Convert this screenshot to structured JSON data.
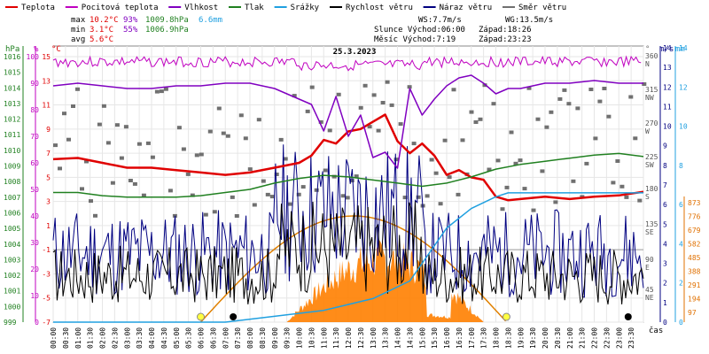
{
  "chart_data": {
    "type": "line",
    "title": "25.3.2023",
    "legend": [
      {
        "name": "Teplota",
        "color": "#e00000"
      },
      {
        "name": "Pocitová teplota",
        "color": "#c000c0"
      },
      {
        "name": "Vlhkost",
        "color": "#8000c0"
      },
      {
        "name": "Tlak",
        "color": "#208020"
      },
      {
        "name": "Srážky",
        "color": "#20a0e0"
      },
      {
        "name": "Rychlost větru",
        "color": "#000000"
      },
      {
        "name": "Náraz větru",
        "color": "#000080"
      },
      {
        "name": "Směr větru",
        "color": "#707070"
      }
    ],
    "stats": {
      "max_label": "max",
      "max_temp": "10.2°C",
      "max_hum": "93%",
      "max_press": "1009.8hPa",
      "max_rain": "6.6mm",
      "min_label": "min",
      "min_temp": "3.1°C",
      "min_hum": "55%",
      "min_press": "1006.9hPa",
      "avg_label": "avg",
      "avg_temp": "5.6°C",
      "ws": "WS:7.7m/s",
      "wg": "WG:13.5m/s",
      "sun": "Slunce Východ:06:00",
      "sun_set": "Západ:18:26",
      "moon": "Měsíc Východ:7:19",
      "moon_set": "Západ:23:23"
    },
    "axes": {
      "hpa_label": "hPa",
      "pct_label": "%",
      "c_label": "°C",
      "deg_label": "°",
      "ms_label": "m/s",
      "mm_label": "mm",
      "time_label": "čas",
      "hpa_ticks": [
        1016,
        1015,
        1014,
        1013,
        1012,
        1011,
        1010,
        1009,
        1008,
        1007,
        1006,
        1005,
        1004,
        1003,
        1002,
        1001,
        1000,
        999
      ],
      "pct_ticks": [
        100,
        90,
        80,
        70,
        60,
        50,
        40,
        30,
        20,
        10,
        0
      ],
      "c_ticks": [
        15,
        13,
        11,
        9,
        7,
        5,
        3,
        1,
        -1,
        -3,
        -5,
        -7
      ],
      "dir_ticks": [
        "360 N",
        "315 NW",
        "270 W",
        "225 SW",
        "180 S",
        "135 SE",
        "90 E",
        "45 NE"
      ],
      "ms_ticks": [
        14,
        13,
        12,
        11,
        10,
        9,
        8,
        7,
        6,
        5,
        4,
        3,
        2,
        1,
        0
      ],
      "mm_ticks": [
        14,
        12,
        10,
        8,
        6,
        4,
        2,
        0
      ],
      "solar_ticks": [
        873,
        776,
        679,
        582,
        485,
        388,
        291,
        194,
        97
      ],
      "time_ticks": [
        "00:00",
        "00:30",
        "01:00",
        "01:30",
        "02:00",
        "02:30",
        "03:00",
        "03:30",
        "04:00",
        "04:30",
        "05:00",
        "05:30",
        "06:00",
        "06:30",
        "07:00",
        "07:30",
        "08:00",
        "08:30",
        "09:00",
        "09:30",
        "10:00",
        "10:30",
        "11:00",
        "11:30",
        "12:00",
        "12:30",
        "13:00",
        "13:30",
        "14:00",
        "14:30",
        "15:00",
        "15:30",
        "16:00",
        "16:30",
        "17:00",
        "17:30",
        "18:00",
        "18:30",
        "19:00",
        "19:30",
        "20:00",
        "20:30",
        "21:00",
        "21:30",
        "22:00",
        "22:30",
        "23:00",
        "23:30"
      ]
    },
    "series": [
      {
        "name": "Teplota",
        "unit": "°C",
        "x_hours": [
          0,
          1,
          2,
          3,
          4,
          5,
          6,
          7,
          8,
          9,
          10,
          10.5,
          11,
          11.5,
          12,
          12.5,
          13,
          13.5,
          14,
          14.5,
          15,
          15.5,
          16,
          16.5,
          17,
          17.5,
          18,
          18.5,
          19,
          20,
          21,
          22,
          23,
          24
        ],
        "values": [
          6.5,
          6.6,
          6.2,
          5.8,
          5.8,
          5.6,
          5.4,
          5.2,
          5.4,
          5.8,
          6.2,
          6.8,
          8.1,
          7.8,
          8.8,
          9.0,
          9.6,
          10.2,
          8.0,
          7.0,
          7.8,
          6.8,
          5.2,
          5.6,
          5.0,
          4.8,
          3.4,
          3.1,
          3.2,
          3.4,
          3.2,
          3.4,
          3.5,
          3.8
        ]
      },
      {
        "name": "Vlhkost",
        "unit": "%",
        "x_hours": [
          0,
          1,
          2,
          3,
          4,
          5,
          6,
          7,
          8,
          9,
          10,
          10.5,
          11,
          11.5,
          12,
          12.5,
          13,
          13.5,
          14,
          14.5,
          15,
          15.5,
          16,
          16.5,
          17,
          17.5,
          18,
          18.5,
          19,
          20,
          21,
          22,
          23,
          24
        ],
        "values": [
          89,
          90,
          89,
          88,
          88,
          89,
          89,
          90,
          90,
          88,
          84,
          82,
          72,
          85,
          70,
          78,
          62,
          64,
          58,
          88,
          78,
          84,
          89,
          92,
          93,
          90,
          86,
          88,
          88,
          90,
          90,
          91,
          90,
          90
        ]
      },
      {
        "name": "Tlak",
        "unit": "hPa",
        "x_hours": [
          0,
          1,
          2,
          3,
          4,
          5,
          6,
          7,
          8,
          9,
          10,
          11,
          12,
          13,
          14,
          15,
          16,
          17,
          18,
          19,
          20,
          21,
          22,
          23,
          24
        ],
        "values": [
          1007.3,
          1007.3,
          1007.1,
          1007.0,
          1007.0,
          1007.0,
          1007.1,
          1007.3,
          1007.5,
          1007.9,
          1008.2,
          1008.4,
          1008.3,
          1008.1,
          1007.9,
          1007.7,
          1007.9,
          1008.3,
          1008.8,
          1009.1,
          1009.3,
          1009.5,
          1009.7,
          1009.8,
          1009.6
        ]
      },
      {
        "name": "Srážky",
        "unit": "mm",
        "x_hours": [
          0,
          7,
          9,
          11,
          13,
          14.5,
          16,
          17,
          18,
          18.5,
          19,
          24
        ],
        "values": [
          0,
          0,
          0.3,
          0.6,
          1.2,
          2.1,
          4.8,
          5.8,
          6.4,
          6.6,
          6.6,
          6.6
        ]
      }
    ]
  }
}
